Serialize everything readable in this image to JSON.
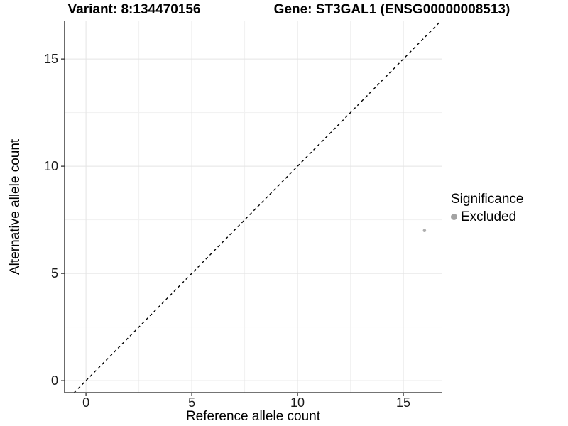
{
  "header": {
    "variant_title": "Variant: 8:134470156",
    "gene_title": "Gene: ST3GAL1 (ENSG00000008513)"
  },
  "chart_data": {
    "type": "scatter",
    "title": "Variant: 8:134470156   Gene: ST3GAL1 (ENSG00000008513)",
    "xlabel": "Reference allele count",
    "ylabel": "Alternative allele count",
    "xlim": [
      -1.01,
      16.81
    ],
    "ylim": [
      -0.56,
      16.76
    ],
    "x_ticks": [
      0,
      5,
      10,
      15
    ],
    "y_ticks": [
      0,
      5,
      10,
      15
    ],
    "x_minor_ticks": [
      2.5,
      7.5,
      12.5
    ],
    "y_minor_ticks": [
      2.5,
      7.5,
      12.5
    ],
    "grid": true,
    "points": [
      {
        "x": 16,
        "y": 7,
        "series": "Excluded"
      }
    ],
    "reference_line": {
      "type": "identity",
      "equation": "y = x",
      "style": "dashed"
    },
    "legend": {
      "title": "Significance",
      "position": "right",
      "entries": [
        {
          "label": "Excluded",
          "color": "#a3a3a3"
        }
      ]
    },
    "colors": {
      "point": "#afafaf",
      "grid_major": "#e4e4e4",
      "grid_minor": "#f1f1f1",
      "axis_line": "#464646",
      "tick": "#333333",
      "reference_line": "#000000"
    }
  }
}
